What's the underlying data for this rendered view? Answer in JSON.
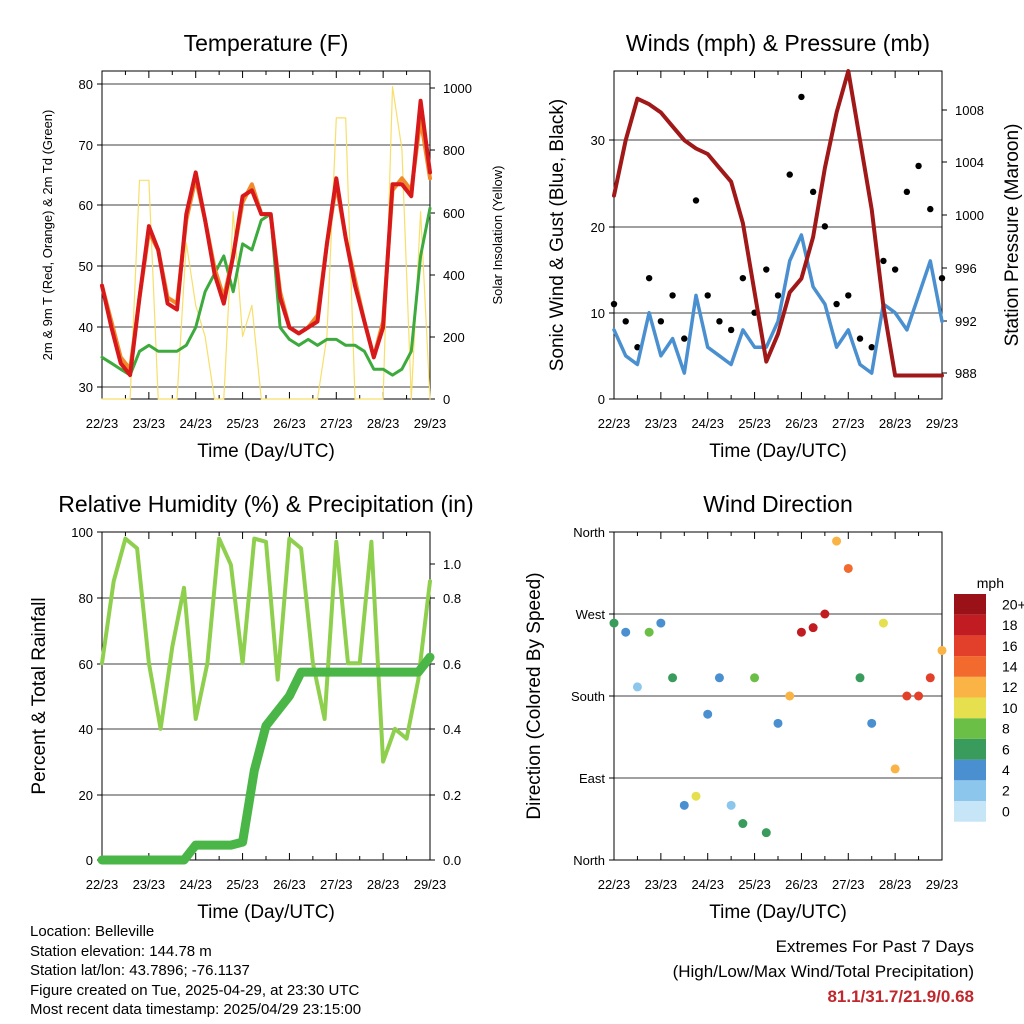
{
  "colors": {
    "temp_2m": "#d7191c",
    "temp_9m": "#f08a2a",
    "dewpoint": "#3caa3c",
    "solar": "#f7df6a",
    "wind": "#4a90d0",
    "gust": "#000000",
    "pressure": "#a01818",
    "rh": "#8fcf4e",
    "precip": "#4bb648",
    "extremes": "#c0282d"
  },
  "time_ticks": [
    "22/23",
    "23/23",
    "24/23",
    "25/23",
    "26/23",
    "27/23",
    "28/23",
    "29/23"
  ],
  "panels": {
    "temperature": {
      "title": "Temperature (F)",
      "xlabel": "Time (Day/UTC)",
      "ylabel_left": "2m & 9m T (Red, Orange) & 2m Td (Green)",
      "ylabel_right": "Solar Insolation (Yellow)",
      "yticks_left": [
        "30",
        "40",
        "50",
        "60",
        "70",
        "80"
      ],
      "yticks_right": [
        "0",
        "200",
        "400",
        "600",
        "800",
        "1000"
      ]
    },
    "winds": {
      "title": "Winds (mph) & Pressure (mb)",
      "xlabel": "Time (Day/UTC)",
      "ylabel_left": "Sonic Wind & Gust (Blue, Black)",
      "ylabel_right": "Station Pressure (Maroon)",
      "yticks_left": [
        "0",
        "10",
        "20",
        "30"
      ],
      "yticks_right": [
        "988",
        "992",
        "996",
        "1000",
        "1004",
        "1008"
      ]
    },
    "humidity": {
      "title": "Relative Humidity (%) & Precipitation (in)",
      "xlabel": "Time (Day/UTC)",
      "ylabel_left": "Percent & Total Rainfall",
      "yticks_left": [
        "0",
        "20",
        "40",
        "60",
        "80",
        "100"
      ],
      "yticks_right": [
        "0.0",
        "0.2",
        "0.4",
        "0.6",
        "0.8",
        "1.0"
      ]
    },
    "direction": {
      "title": "Wind Direction",
      "xlabel": "Time (Day/UTC)",
      "ylabel_left": "Direction (Colored By Speed)",
      "yticks_left": [
        "North",
        "East",
        "South",
        "West",
        "North"
      ],
      "legend_title": "mph",
      "legend_labels": [
        "0",
        "2",
        "4",
        "6",
        "8",
        "10",
        "12",
        "14",
        "16",
        "18",
        "20+"
      ],
      "legend_colors": [
        "#c6e6f8",
        "#8cc6ec",
        "#4a90d0",
        "#3a9c5c",
        "#6cbf46",
        "#e6e04e",
        "#f9b445",
        "#f26a2e",
        "#e2402b",
        "#c11c22",
        "#9a1218"
      ]
    }
  },
  "info": {
    "location": "Location: Belleville",
    "elevation": "Station elevation: 144.78 m",
    "latlon": "Station lat/lon: 43.7896; -76.1137",
    "created": "Figure created on Tue, 2025-04-29, at 23:30 UTC",
    "recent": "Most recent data timestamp: 2025/04/29 23:15:00"
  },
  "extremes": {
    "title": "Extremes For Past 7 Days",
    "subtitle": "(High/Low/Max Wind/Total Precipitation)",
    "value": "81.1/31.7/21.9/0.68"
  },
  "chart_data": [
    {
      "type": "line",
      "title": "Temperature (F)",
      "xlabel": "Time (Day/UTC)",
      "ylabel": "2m & 9m T (Red, Orange) & 2m Td (Green)",
      "ylabel_right": "Solar Insolation (Yellow)",
      "xlim": [
        0,
        7
      ],
      "ylim": [
        28,
        83
      ],
      "ylim_right": [
        0,
        1050
      ],
      "x": [
        0,
        0.2,
        0.4,
        0.6,
        0.8,
        1.0,
        1.2,
        1.4,
        1.6,
        1.8,
        2.0,
        2.2,
        2.4,
        2.6,
        2.8,
        3.0,
        3.2,
        3.4,
        3.6,
        3.8,
        4.0,
        4.2,
        4.4,
        4.6,
        4.8,
        5.0,
        5.2,
        5.4,
        5.6,
        5.8,
        6.0,
        6.2,
        6.4,
        6.6,
        6.8,
        7.0
      ],
      "series": [
        {
          "name": "2m T",
          "values": [
            47,
            40,
            34,
            32,
            45,
            57,
            53,
            44,
            43,
            59,
            66,
            58,
            49,
            44,
            52,
            62,
            63,
            59,
            59,
            45,
            40,
            39,
            40,
            41,
            54,
            65,
            55,
            47,
            41,
            35,
            40,
            64,
            64,
            62,
            78,
            66
          ]
        },
        {
          "name": "9m T",
          "values": [
            47,
            41,
            35,
            33,
            45,
            56,
            53,
            45,
            44,
            58,
            65,
            58,
            50,
            45,
            52,
            61,
            64,
            59,
            59,
            46,
            40,
            39,
            40,
            42,
            54,
            64,
            55,
            48,
            41,
            35,
            41,
            63,
            65,
            63,
            75,
            65
          ]
        },
        {
          "name": "2m Td",
          "values": [
            35,
            34,
            33,
            32,
            36,
            37,
            36,
            36,
            36,
            37,
            40,
            46,
            49,
            52,
            46,
            54,
            53,
            58,
            59,
            40,
            38,
            37,
            38,
            37,
            38,
            38,
            37,
            37,
            36,
            33,
            33,
            32,
            33,
            36,
            52,
            60
          ]
        },
        {
          "name": "Solar",
          "values": [
            0,
            0,
            0,
            0,
            700,
            700,
            0,
            0,
            0,
            500,
            300,
            200,
            0,
            0,
            600,
            200,
            300,
            0,
            0,
            0,
            0,
            0,
            0,
            0,
            200,
            900,
            900,
            0,
            0,
            0,
            0,
            1000,
            800,
            0,
            600,
            0
          ]
        }
      ]
    },
    {
      "type": "line",
      "title": "Winds (mph) & Pressure (mb)",
      "xlabel": "Time (Day/UTC)",
      "ylabel": "Sonic Wind & Gust (Blue, Black)",
      "ylabel_right": "Station Pressure (Maroon)",
      "xlim": [
        0,
        7
      ],
      "ylim": [
        0,
        38
      ],
      "ylim_right": [
        986.3,
        1010
      ],
      "x": [
        0,
        0.25,
        0.5,
        0.75,
        1.0,
        1.25,
        1.5,
        1.75,
        2.0,
        2.25,
        2.5,
        2.75,
        3.0,
        3.25,
        3.5,
        3.75,
        4.0,
        4.25,
        4.5,
        4.75,
        5.0,
        5.25,
        5.5,
        5.75,
        6.0,
        6.25,
        6.5,
        6.75,
        7.0
      ],
      "series": [
        {
          "name": "Sonic Wind",
          "values": [
            8,
            5,
            4,
            10,
            5,
            7,
            3,
            12,
            6,
            5,
            4,
            8,
            6,
            6,
            9,
            16,
            19,
            13,
            11,
            6,
            8,
            4,
            3,
            11,
            10,
            8,
            12,
            16,
            9
          ]
        },
        {
          "name": "Gust",
          "values": [
            11,
            9,
            6,
            14,
            9,
            12,
            7,
            23,
            12,
            9,
            8,
            14,
            10,
            15,
            12,
            26,
            35,
            24,
            20,
            11,
            12,
            7,
            6,
            16,
            15,
            24,
            27,
            22,
            14
          ]
        },
        {
          "name": "Pressure",
          "values": [
            1001,
            1005,
            1008,
            1007.6,
            1007,
            1006,
            1005,
            1004.4,
            1004,
            1003,
            1002,
            999,
            994,
            989,
            991,
            994,
            995,
            998,
            1003,
            1007,
            1010,
            1005,
            1000,
            993,
            988,
            988,
            988,
            988,
            988
          ]
        }
      ]
    },
    {
      "type": "line",
      "title": "Relative Humidity (%) & Precipitation (in)",
      "xlabel": "Time (Day/UTC)",
      "ylabel": "Percent & Total Rainfall",
      "xlim": [
        0,
        7
      ],
      "ylim": [
        0,
        100
      ],
      "ylim_right": [
        0,
        1.1
      ],
      "x": [
        0,
        0.25,
        0.5,
        0.75,
        1.0,
        1.25,
        1.5,
        1.75,
        2.0,
        2.25,
        2.5,
        2.75,
        3.0,
        3.25,
        3.5,
        3.75,
        4.0,
        4.25,
        4.5,
        4.75,
        5.0,
        5.25,
        5.5,
        5.75,
        6.0,
        6.25,
        6.5,
        6.75,
        7.0
      ],
      "series": [
        {
          "name": "RH",
          "values": [
            60,
            85,
            98,
            95,
            60,
            40,
            65,
            83,
            43,
            60,
            98,
            90,
            60,
            98,
            97,
            55,
            98,
            95,
            60,
            43,
            97,
            60,
            60,
            97,
            30,
            40,
            37,
            55,
            85
          ]
        },
        {
          "name": "Precipitation",
          "values": [
            0,
            0,
            0,
            0,
            0,
            0,
            0,
            0,
            0.05,
            0.05,
            0.05,
            0.05,
            0.06,
            0.3,
            0.45,
            0.5,
            0.55,
            0.63,
            0.63,
            0.63,
            0.63,
            0.63,
            0.63,
            0.63,
            0.63,
            0.63,
            0.63,
            0.63,
            0.68
          ]
        }
      ]
    },
    {
      "type": "scatter",
      "title": "Wind Direction",
      "xlabel": "Time (Day/UTC)",
      "ylabel": "Direction (Colored By Speed)",
      "xlim": [
        0,
        7
      ],
      "ylim": [
        0,
        360
      ],
      "x": [
        0,
        0.25,
        0.5,
        0.75,
        1.0,
        1.25,
        1.5,
        1.75,
        2.0,
        2.25,
        2.5,
        2.75,
        3.0,
        3.25,
        3.5,
        3.75,
        4.0,
        4.25,
        4.5,
        4.75,
        5.0,
        5.25,
        5.5,
        5.75,
        6.0,
        6.25,
        6.5,
        6.75,
        7.0
      ],
      "series": [
        {
          "name": "Direction",
          "values": [
            260,
            250,
            190,
            250,
            260,
            200,
            60,
            70,
            160,
            200,
            60,
            40,
            200,
            30,
            150,
            180,
            250,
            255,
            270,
            350,
            320,
            200,
            150,
            260,
            100,
            180,
            180,
            200,
            230
          ]
        },
        {
          "name": "Speed",
          "values": [
            6,
            4,
            2,
            7,
            4,
            5,
            3,
            9,
            4,
            3,
            2,
            5,
            7,
            5,
            3,
            12,
            18,
            18,
            17,
            12,
            14,
            5,
            3,
            9,
            12,
            15,
            15,
            16,
            11
          ]
        }
      ]
    }
  ]
}
